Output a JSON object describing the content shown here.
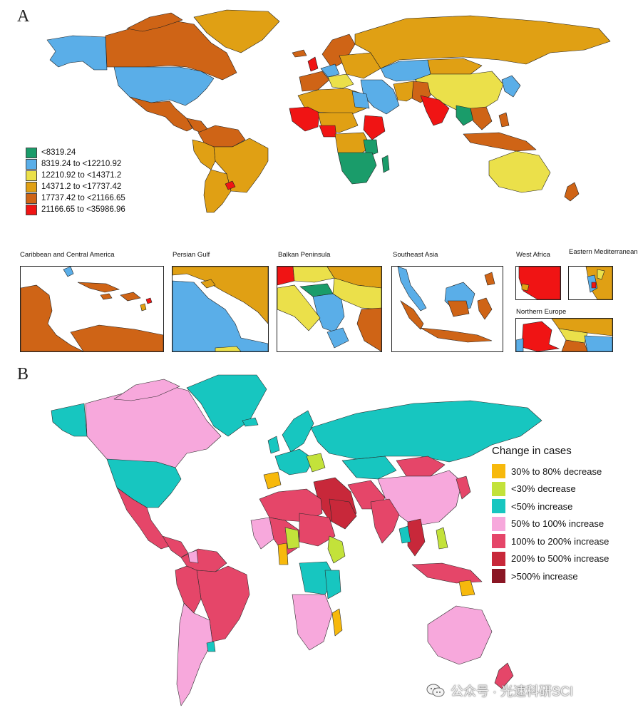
{
  "panels": {
    "a": {
      "letter": "A",
      "legend": [
        {
          "label": "<8319.24",
          "color": "#1a9c6a"
        },
        {
          "label": "8319.24 to <12210.92",
          "color": "#5aaee8"
        },
        {
          "label": "12210.92 to <14371.2",
          "color": "#ebe04a"
        },
        {
          "label": "14371.2 to <17737.42",
          "color": "#e0a014"
        },
        {
          "label": "17737.42 to <21166.65",
          "color": "#cf6416"
        },
        {
          "label": "21166.65 to <35986.96",
          "color": "#f01414"
        }
      ],
      "insets": [
        {
          "title": "Caribbean and Central America"
        },
        {
          "title": "Persian Gulf"
        },
        {
          "title": "Balkan Peninsula"
        },
        {
          "title": "Southeast Asia"
        },
        {
          "title": "West Africa"
        },
        {
          "title": "Eastern Mediterranean"
        },
        {
          "title": "Northern Europe"
        }
      ]
    },
    "b": {
      "letter": "B",
      "legend_title": "Change in  cases",
      "legend": [
        {
          "label": "30% to 80% decrease",
          "color": "#f7b90c"
        },
        {
          "label": "<30% decrease",
          "color": "#c3e23a"
        },
        {
          "label": "<50% increase",
          "color": "#17c6c0"
        },
        {
          "label": "50% to 100% increase",
          "color": "#f7a8dc"
        },
        {
          "label": "100% to 200% increase",
          "color": "#e54669"
        },
        {
          "label": "200% to 500% increase",
          "color": "#c8283a"
        },
        {
          "label": ">500% increase",
          "color": "#8a1624"
        }
      ]
    }
  },
  "watermark": {
    "text": "公众号 · 光速科研SCI",
    "icon": "wechat-icon"
  }
}
